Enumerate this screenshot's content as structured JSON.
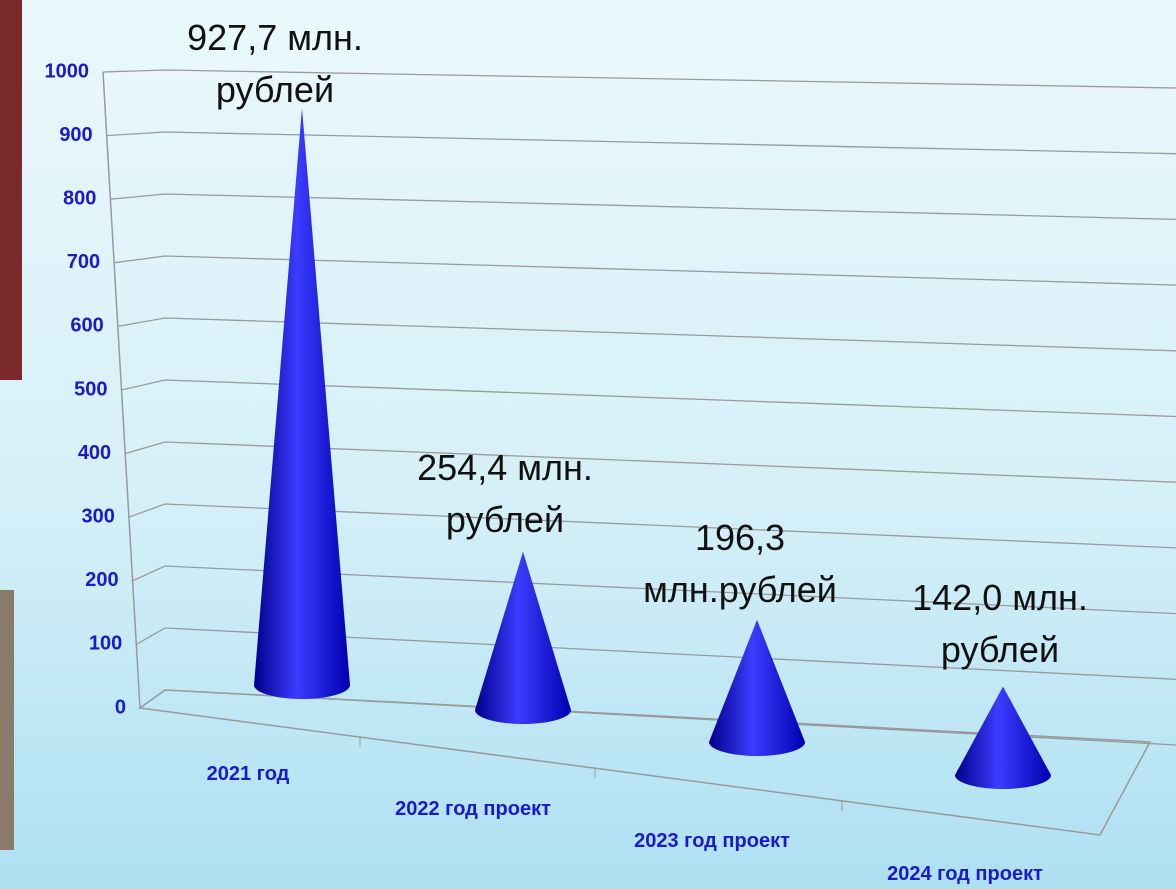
{
  "chart_data": {
    "type": "cone",
    "categories": [
      "2021 год",
      "2022 год проект",
      "2023 год проект",
      "2024 год проект"
    ],
    "values": [
      927.7,
      254.4,
      196.3,
      142.0
    ],
    "value_labels": [
      "927,7 млн. рублей",
      "254,4 млн. рублей",
      "196,3 млн.рублей",
      "142,0 млн. рублей"
    ],
    "color": "#0000e0",
    "ylim": [
      0,
      1000
    ],
    "yticks": [
      0,
      100,
      200,
      300,
      400,
      500,
      600,
      700,
      800,
      900,
      1000
    ],
    "grid": true
  }
}
